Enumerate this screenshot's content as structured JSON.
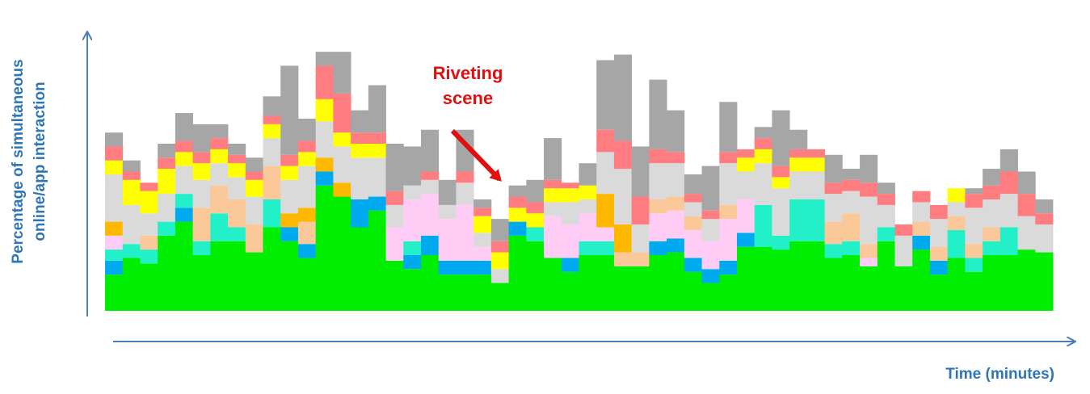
{
  "chart_data": {
    "type": "stacked_bar",
    "y_label": [
      "Percentage of simultaneous",
      "online/app interaction"
    ],
    "x_label": "Time (minutes)",
    "annotation": [
      "Riveting",
      "scene"
    ],
    "ylim": [
      0,
      100
    ],
    "categories": [
      null,
      null,
      null,
      null,
      null,
      null,
      null,
      null,
      null,
      null,
      null,
      null,
      null,
      null,
      null,
      null,
      null,
      null,
      null,
      null,
      null,
      null,
      null,
      null,
      null,
      null,
      null,
      null,
      null,
      null,
      null,
      null,
      null,
      null,
      null,
      null,
      null,
      null,
      null,
      null,
      null,
      null,
      null,
      null,
      null,
      null,
      null,
      null,
      null,
      null,
      null,
      null,
      null,
      null
    ],
    "series": [
      {
        "color": "#00ee00",
        "values": [
          13,
          19,
          17,
          27,
          32,
          20,
          25,
          25,
          21,
          30,
          25,
          19,
          45,
          41,
          30,
          36,
          18,
          15,
          20,
          13,
          13,
          13,
          10,
          27,
          25,
          19,
          14,
          20,
          20,
          16,
          16,
          20,
          21,
          14,
          10,
          13,
          23,
          23,
          22,
          25,
          25,
          19,
          20,
          16,
          25,
          16,
          22,
          13,
          19,
          14,
          20,
          20,
          22,
          21
        ]
      },
      {
        "color": "#00aaee",
        "values": [
          5,
          0,
          0,
          0,
          5,
          0,
          0,
          0,
          0,
          0,
          5,
          5,
          5,
          0,
          10,
          5,
          0,
          5,
          7,
          5,
          5,
          5,
          0,
          5,
          0,
          0,
          5,
          0,
          0,
          0,
          0,
          5,
          5,
          5,
          5,
          5,
          5,
          0,
          0,
          0,
          0,
          0,
          0,
          0,
          0,
          0,
          5,
          5,
          0,
          0,
          0,
          0,
          0,
          0
        ]
      },
      {
        "color": "#22f0c8",
        "values": [
          4,
          5,
          5,
          5,
          5,
          5,
          10,
          5,
          0,
          10,
          0,
          0,
          0,
          0,
          0,
          0,
          0,
          5,
          0,
          0,
          0,
          0,
          0,
          0,
          5,
          0,
          0,
          5,
          5,
          0,
          0,
          0,
          0,
          0,
          0,
          0,
          0,
          15,
          5,
          15,
          15,
          5,
          5,
          0,
          5,
          0,
          0,
          0,
          10,
          5,
          5,
          10,
          0,
          0
        ]
      },
      {
        "color": "#ffccf5",
        "values": [
          5,
          0,
          0,
          0,
          0,
          0,
          0,
          0,
          0,
          0,
          0,
          0,
          0,
          0,
          0,
          0,
          12,
          15,
          15,
          15,
          20,
          5,
          0,
          0,
          0,
          15,
          12,
          10,
          5,
          0,
          0,
          10,
          10,
          10,
          10,
          15,
          12,
          0,
          0,
          0,
          0,
          0,
          0,
          3,
          0,
          0,
          0,
          0,
          0,
          0,
          0,
          0,
          0,
          0
        ]
      },
      {
        "color": "#fbc89a",
        "values": [
          0,
          0,
          5,
          0,
          0,
          12,
          10,
          10,
          10,
          12,
          0,
          8,
          0,
          0,
          0,
          0,
          0,
          0,
          0,
          0,
          0,
          0,
          0,
          0,
          0,
          0,
          0,
          0,
          0,
          5,
          5,
          5,
          5,
          5,
          0,
          5,
          0,
          0,
          0,
          0,
          0,
          8,
          10,
          5,
          0,
          0,
          5,
          5,
          5,
          5,
          5,
          0,
          0,
          0
        ]
      },
      {
        "color": "#ffb800",
        "values": [
          5,
          0,
          0,
          0,
          0,
          0,
          0,
          0,
          0,
          0,
          5,
          5,
          5,
          5,
          0,
          0,
          0,
          0,
          0,
          0,
          0,
          0,
          0,
          0,
          0,
          0,
          0,
          0,
          12,
          10,
          0,
          0,
          0,
          0,
          0,
          0,
          0,
          0,
          0,
          0,
          0,
          0,
          0,
          0,
          0,
          0,
          0,
          0,
          0,
          0,
          0,
          0,
          0,
          0
        ]
      },
      {
        "color": "#dadada",
        "values": [
          17,
          14,
          8,
          10,
          10,
          10,
          8,
          8,
          10,
          10,
          12,
          15,
          13,
          13,
          15,
          14,
          8,
          5,
          5,
          5,
          8,
          5,
          5,
          0,
          0,
          5,
          8,
          5,
          15,
          20,
          10,
          13,
          12,
          5,
          8,
          15,
          10,
          15,
          17,
          10,
          10,
          10,
          8,
          17,
          8,
          11,
          7,
          10,
          5,
          13,
          10,
          12,
          12,
          10
        ]
      },
      {
        "color": "#ffff00",
        "values": [
          5,
          9,
          8,
          9,
          5,
          6,
          5,
          5,
          6,
          5,
          5,
          5,
          8,
          5,
          5,
          5,
          0,
          0,
          0,
          0,
          0,
          6,
          6,
          5,
          5,
          5,
          5,
          5,
          0,
          0,
          0,
          0,
          0,
          0,
          0,
          0,
          5,
          5,
          4,
          5,
          5,
          0,
          0,
          0,
          0,
          0,
          0,
          0,
          5,
          0,
          0,
          0,
          0,
          0
        ]
      },
      {
        "color": "#ff7c80",
        "values": [
          5,
          3,
          3,
          4,
          4,
          4,
          4,
          3,
          3,
          3,
          4,
          4,
          12,
          14,
          4,
          4,
          5,
          0,
          3,
          0,
          4,
          3,
          4,
          4,
          4,
          3,
          2,
          0,
          8,
          10,
          10,
          5,
          4,
          3,
          3,
          4,
          3,
          4,
          4,
          3,
          3,
          4,
          4,
          5,
          4,
          4,
          4,
          5,
          0,
          5,
          5,
          8,
          8,
          4
        ]
      },
      {
        "color": "#a6a6a6",
        "values": [
          5,
          4,
          0,
          5,
          10,
          10,
          5,
          4,
          5,
          7,
          32,
          8,
          5,
          15,
          8,
          17,
          17,
          14,
          15,
          9,
          15,
          3,
          8,
          4,
          8,
          15,
          0,
          8,
          25,
          31,
          18,
          25,
          15,
          7,
          16,
          18,
          0,
          4,
          20,
          7,
          0,
          10,
          4,
          10,
          4,
          0,
          0,
          0,
          0,
          2,
          6,
          8,
          8,
          5
        ]
      }
    ]
  }
}
